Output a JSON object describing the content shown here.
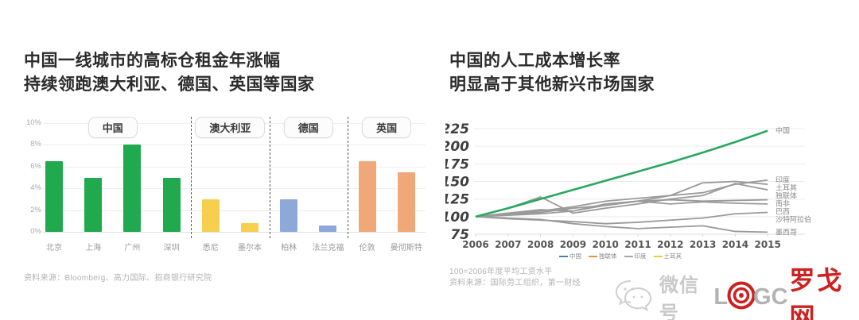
{
  "colors": {
    "china_green": "#21a94e",
    "australia_yellow": "#f6cf4f",
    "germany_blue": "#8ea9d8",
    "uk_orange": "#f0a878",
    "line_green": "#27a860",
    "line_gray": "#9a9a9a",
    "brand_red": "#cf2020"
  },
  "left_panel": {
    "title_line1": "中国一线城市的高标仓租金年涨幅",
    "title_line2": "持续领跑澳大利亚、德国、英国等国家",
    "source": "资料来源：Bloomberg、高力国际、招商银行研究院"
  },
  "right_panel": {
    "title_line1": "中国的人工成本增长率",
    "title_line2": "明显高于其他新兴市场国家",
    "note": "100=2006年度平均工资水平",
    "source": "资料来源：国际劳工组织，第一财经",
    "legend": [
      {
        "label": "中国",
        "color": "#4a7ebb"
      },
      {
        "label": "独联体",
        "color": "#e8923a"
      },
      {
        "label": "印度",
        "color": "#a6a6a6"
      },
      {
        "label": "土耳其",
        "color": "#f0c93c"
      }
    ]
  },
  "watermark": {
    "wechat_icon": "wechat-icon",
    "account_label": "微信号",
    "logo_letter_l": "L",
    "bullseye_icon": "bullseye-icon",
    "logo_letters_gc": "GC",
    "brand_name": "罗戈网"
  },
  "chart_data": [
    {
      "type": "bar",
      "title": "中国一线城市的高标仓租金年涨幅 持续领跑澳大利亚、德国、英国等国家",
      "categories": [
        "北京",
        "上海",
        "广州",
        "深圳",
        "悉尼",
        "墨尔本",
        "柏林",
        "法兰克福",
        "伦敦",
        "曼彻斯特"
      ],
      "values": [
        6.5,
        5.0,
        8.0,
        5.0,
        3.0,
        0.8,
        3.0,
        0.6,
        6.5,
        5.5
      ],
      "unit": "%",
      "ylim": [
        0,
        10
      ],
      "yticks": [
        10,
        8,
        6,
        4,
        2,
        0
      ],
      "grid": true,
      "groups": [
        {
          "label": "中国",
          "from": 0,
          "to": 3,
          "color": "#21a94e"
        },
        {
          "label": "澳大利亚",
          "from": 4,
          "to": 5,
          "color": "#f6cf4f"
        },
        {
          "label": "德国",
          "from": 6,
          "to": 7,
          "color": "#8ea9d8"
        },
        {
          "label": "英国",
          "from": 8,
          "to": 9,
          "color": "#f0a878"
        }
      ]
    },
    {
      "type": "line",
      "title": "中国的人工成本增长率 明显高于其他新兴市场国家",
      "x": [
        2006,
        2007,
        2008,
        2009,
        2010,
        2011,
        2012,
        2013,
        2014,
        2015
      ],
      "ylim": [
        75,
        230
      ],
      "yticks": [
        225,
        200,
        175,
        150,
        125,
        100,
        75
      ],
      "baseline_note": "100=2006年度平均工资水平",
      "grid": true,
      "legend_position": "bottom",
      "series": [
        {
          "name": "中国",
          "color": "#27a860",
          "values": [
            100,
            112,
            125,
            138,
            151,
            164,
            177,
            191,
            206,
            222
          ]
        },
        {
          "name": "印度",
          "color": "#9a9a9a",
          "values": [
            100,
            104,
            108,
            114,
            122,
            126,
            130,
            134,
            146,
            152
          ]
        },
        {
          "name": "土耳其",
          "color": "#9a9a9a",
          "values": [
            100,
            105,
            110,
            108,
            116,
            122,
            130,
            148,
            150,
            146
          ]
        },
        {
          "name": "独联体",
          "color": "#9a9a9a",
          "values": [
            100,
            112,
            128,
            105,
            112,
            118,
            125,
            130,
            147,
            138
          ]
        },
        {
          "name": "南非",
          "color": "#9a9a9a",
          "values": [
            100,
            102,
            104,
            108,
            118,
            122,
            124,
            122,
            123,
            124
          ]
        },
        {
          "name": "巴西",
          "color": "#9a9a9a",
          "values": [
            100,
            103,
            106,
            112,
            116,
            122,
            118,
            121,
            119,
            118
          ]
        },
        {
          "name": "沙特阿拉伯",
          "color": "#9a9a9a",
          "values": [
            100,
            97,
            95,
            93,
            90,
            92,
            95,
            98,
            104,
            106
          ]
        },
        {
          "name": "墨西哥",
          "color": "#9a9a9a",
          "values": [
            100,
            98,
            96,
            90,
            86,
            83,
            85,
            87,
            79,
            78
          ]
        }
      ]
    }
  ]
}
